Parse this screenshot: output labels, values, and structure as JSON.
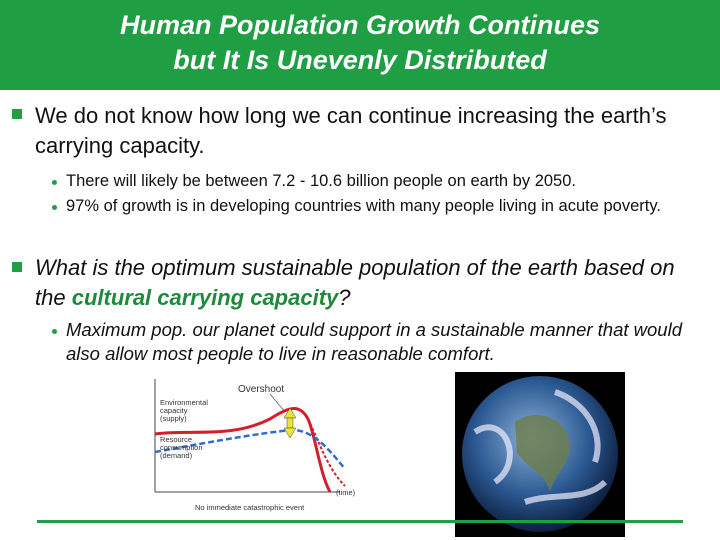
{
  "header": {
    "title_lines": [
      "Human Population Growth Continues",
      "but It Is Unevenly Distributed"
    ]
  },
  "bullets": [
    {
      "text": "We do not know how long we can continue increasing the earth’s carrying capacity.",
      "sub": [
        "There will likely be between 7.2 - 10.6 billion people on earth by 2050.",
        "97% of growth is in developing countries with many people living in acute poverty."
      ]
    },
    {
      "text_before": "What is the optimum sustainable population of the earth based on the ",
      "emphasis": "cultural carrying capacity",
      "text_after": "?",
      "sub": [
        "Maximum pop. our planet could support in a sustainable manner that would also allow most people to live in reasonable comfort."
      ]
    }
  ],
  "figure": {
    "overshoot": "Overshoot",
    "supply_lines": [
      "Environmental",
      "capacity",
      "(supply)"
    ],
    "demand_lines": [
      "Resource",
      "consumption",
      "(demand)"
    ],
    "time": "(time)",
    "caption": "No immediate catastrophic event"
  }
}
